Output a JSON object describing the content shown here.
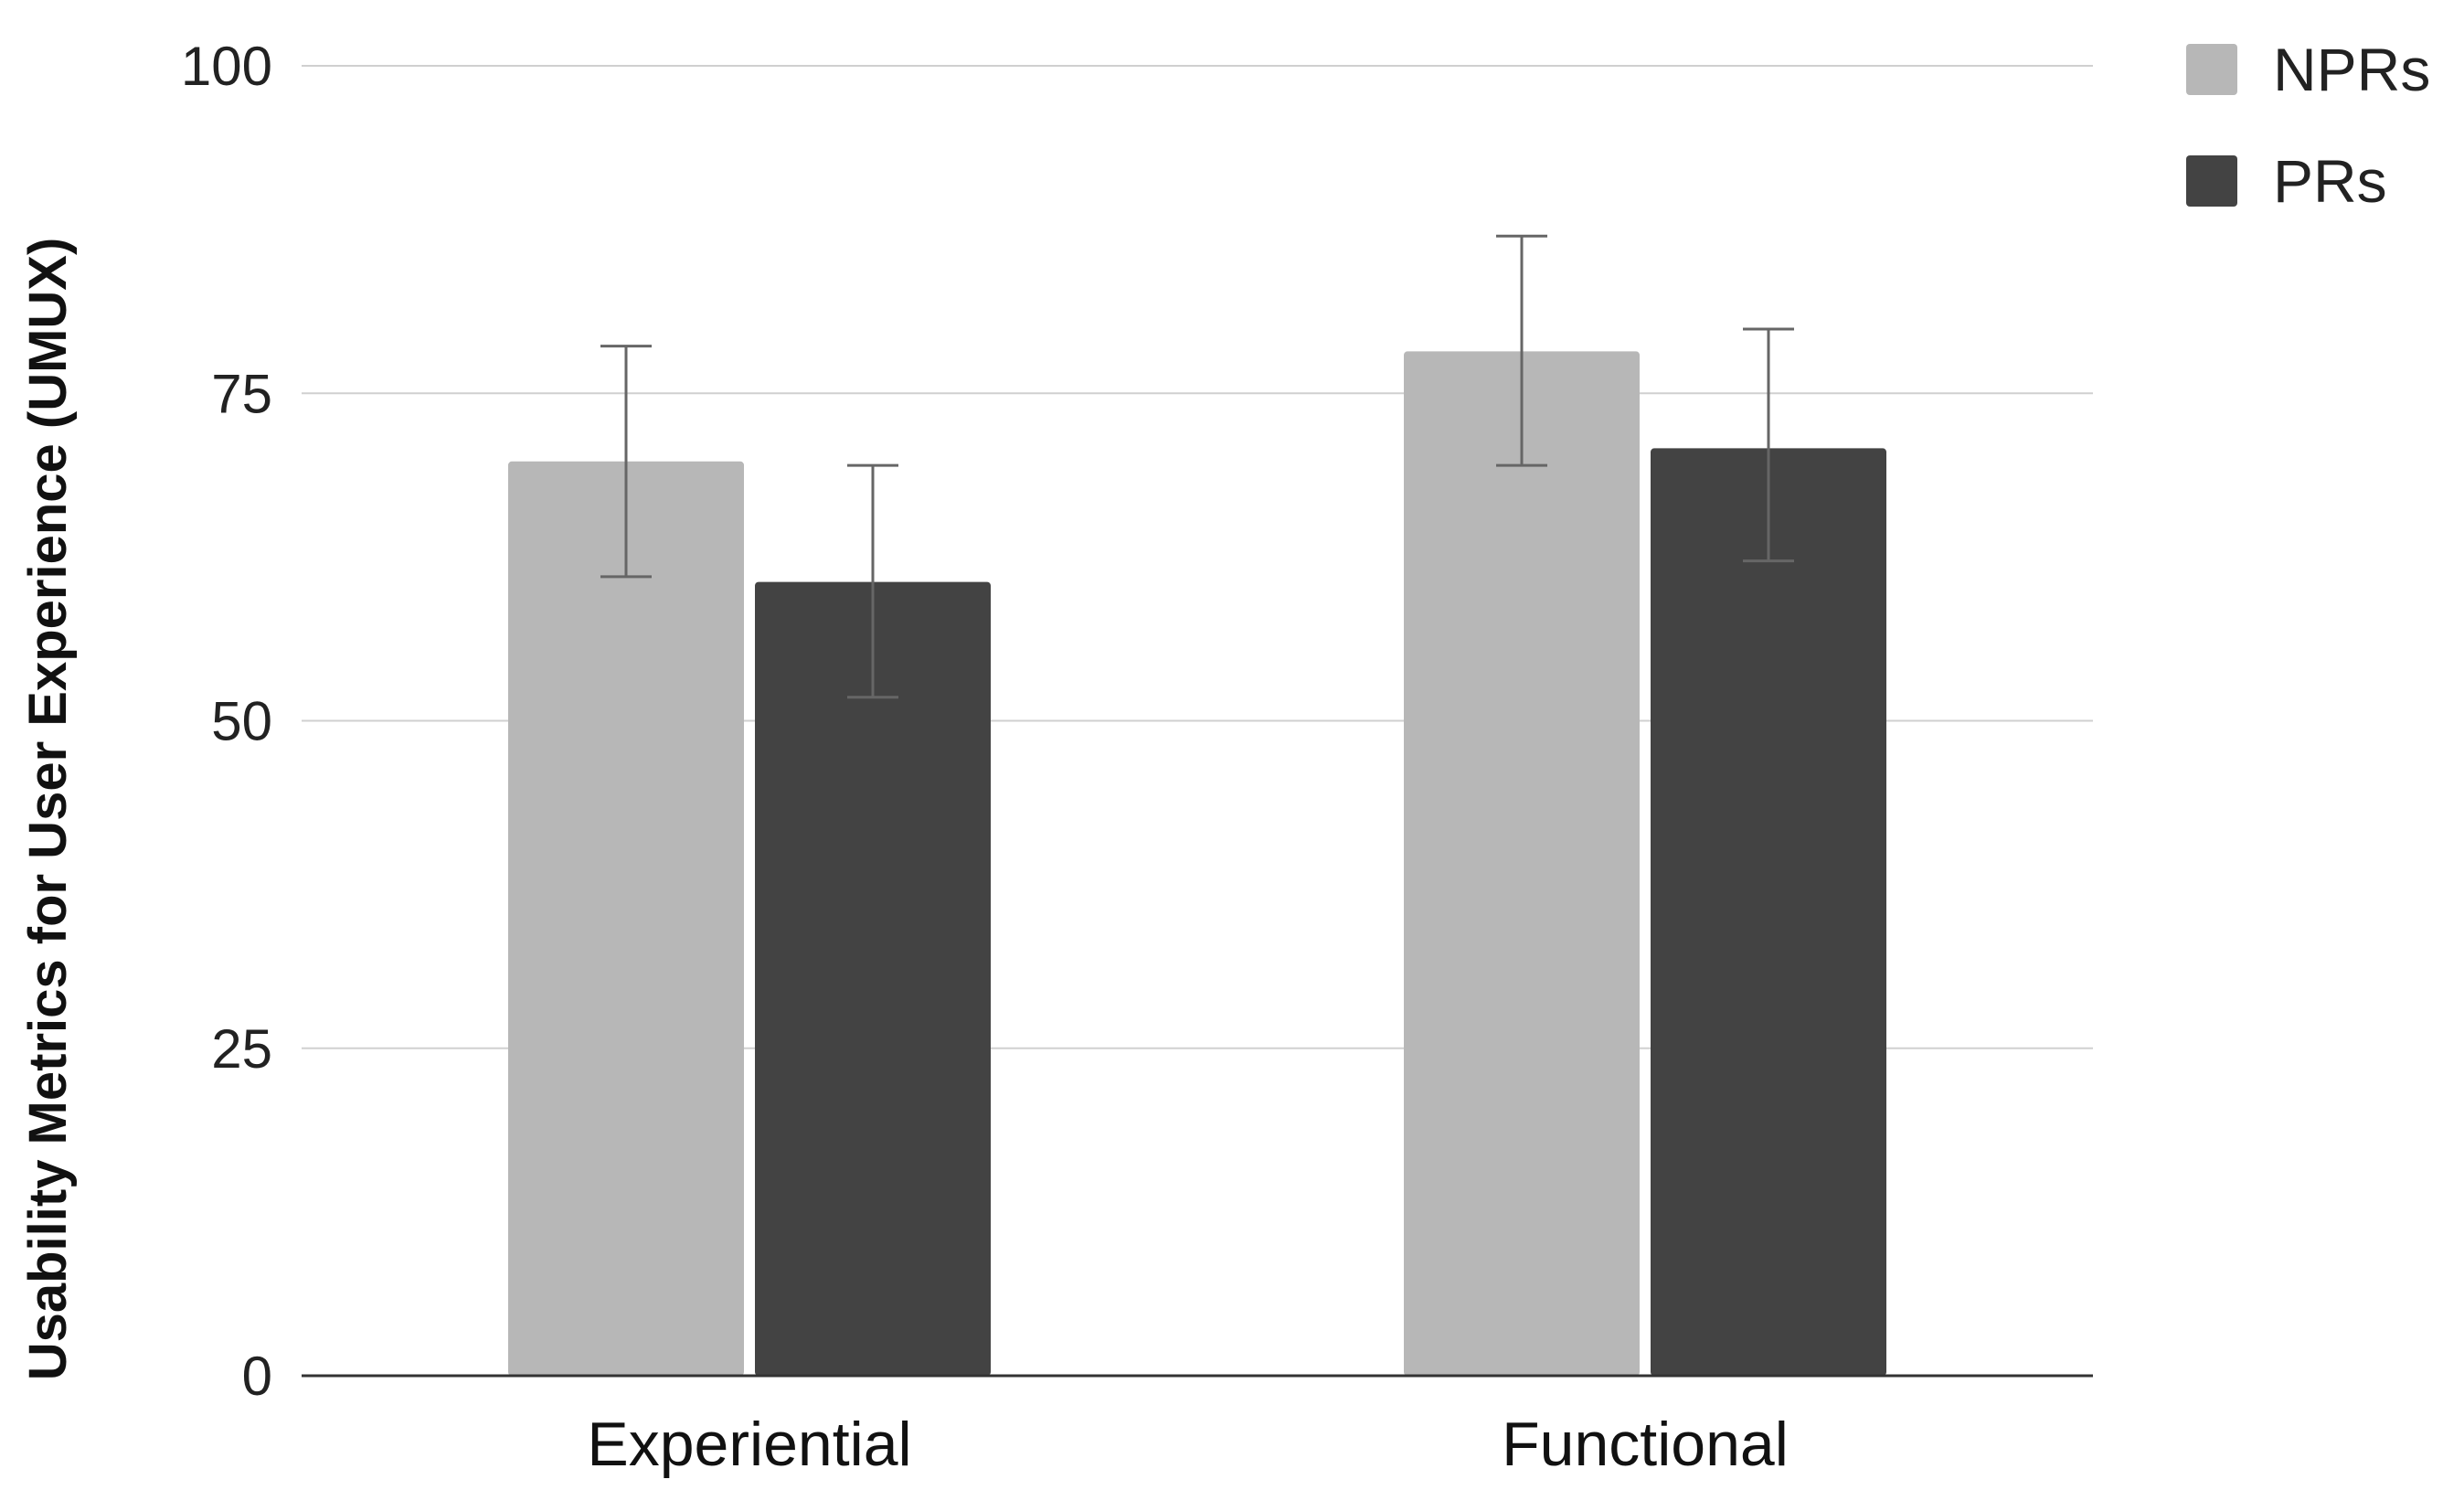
{
  "chart_data": {
    "type": "bar",
    "title": "",
    "xlabel": "",
    "ylabel": "Usability Metrics for User Experience (UMUX)",
    "categories": [
      "Experiential",
      "Functional"
    ],
    "series": [
      {
        "name": "NPRs",
        "color": "#b7b7b7",
        "values": [
          69.8,
          78.2
        ],
        "error_low": [
          61.0,
          69.5
        ],
        "error_high": [
          78.6,
          87.0
        ]
      },
      {
        "name": "PRs",
        "color": "#434343",
        "values": [
          60.6,
          70.8
        ],
        "error_low": [
          51.8,
          62.2
        ],
        "error_high": [
          69.5,
          79.9
        ]
      }
    ],
    "ylim": [
      0,
      100
    ],
    "yticks": [
      0,
      25,
      50,
      75,
      100
    ],
    "ytick_labels": [
      "0",
      "25",
      "50",
      "75",
      "100"
    ],
    "grid": true,
    "legend_position": "top-right",
    "colors": {
      "grid": "#d0d0d0",
      "axis": "#333333",
      "error_bar": "#666666"
    }
  }
}
